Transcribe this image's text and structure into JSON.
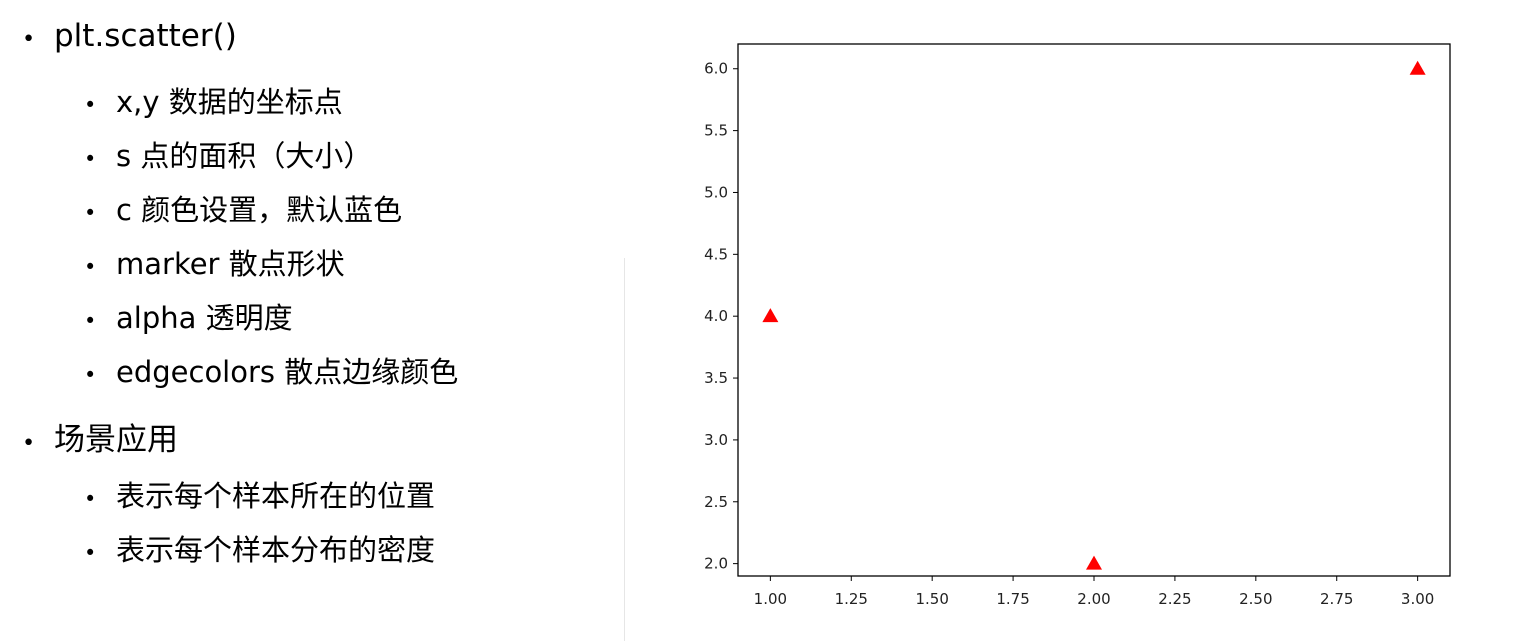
{
  "slide": {
    "bullets": [
      {
        "text": "plt.scatter()",
        "level": 1
      },
      {
        "text": "x,y  数据的坐标点",
        "level": 2
      },
      {
        "text": "s 点的面积（大小）",
        "level": 2
      },
      {
        "text": "c 颜色设置，默认蓝色",
        "level": 2
      },
      {
        "text": "marker 散点形状",
        "level": 2
      },
      {
        "text": "alpha 透明度",
        "level": 2
      },
      {
        "text": "edgecolors 散点边缘颜色",
        "level": 2
      },
      {
        "text": "场景应用",
        "level": 1
      },
      {
        "text": "表示每个样本所在的位置",
        "level": 2
      },
      {
        "text": "表示每个样本分布的密度",
        "level": 2
      }
    ],
    "bullet_glyph": "•"
  },
  "chart_data": {
    "type": "scatter",
    "series": [
      {
        "x": [
          1,
          2,
          3
        ],
        "y": [
          4,
          2,
          6
        ],
        "marker": "triangle",
        "color": "#ff0000"
      }
    ],
    "xlim": [
      0.9,
      3.1
    ],
    "ylim": [
      1.9,
      6.2
    ],
    "xticks": [
      1.0,
      1.25,
      1.5,
      1.75,
      2.0,
      2.25,
      2.5,
      2.75,
      3.0
    ],
    "xtick_labels": [
      "1.00",
      "1.25",
      "1.50",
      "1.75",
      "2.00",
      "2.25",
      "2.50",
      "2.75",
      "3.00"
    ],
    "yticks": [
      2.0,
      2.5,
      3.0,
      3.5,
      4.0,
      4.5,
      5.0,
      5.5,
      6.0
    ],
    "ytick_labels": [
      "2.0",
      "2.5",
      "3.0",
      "3.5",
      "4.0",
      "4.5",
      "5.0",
      "5.5",
      "6.0"
    ],
    "grid": false,
    "title": "",
    "xlabel": "",
    "ylabel": ""
  }
}
